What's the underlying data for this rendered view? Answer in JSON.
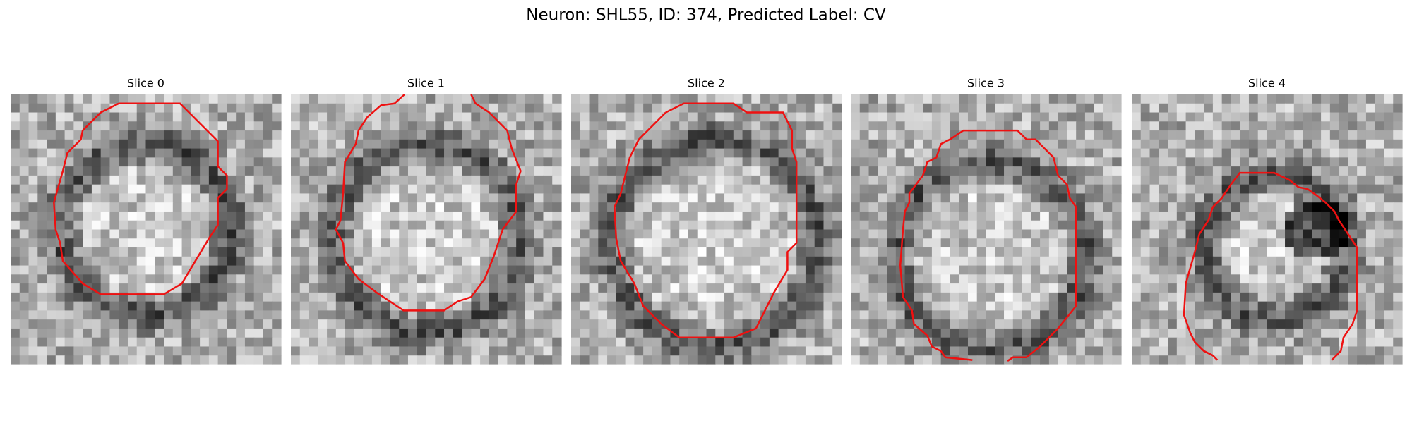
{
  "header": {
    "title": "Neuron: SHL55, ID: 374, Predicted Label: CV"
  },
  "panels": [
    {
      "title": "Slice 0"
    },
    {
      "title": "Slice 1"
    },
    {
      "title": "Slice 2"
    },
    {
      "title": "Slice 3"
    },
    {
      "title": "Slice 4"
    }
  ]
}
